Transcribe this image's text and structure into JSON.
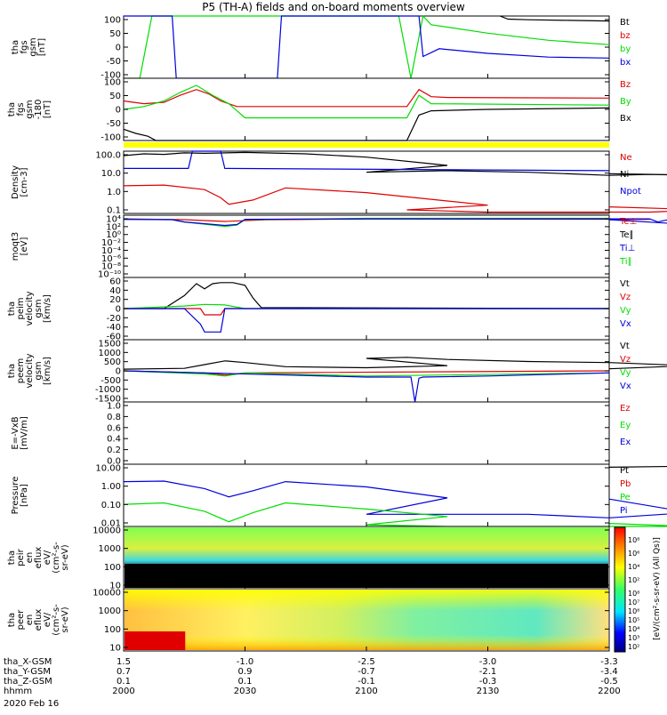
{
  "title": "P5 (TH-A) fields and on-board moments overview",
  "colors": {
    "black": "#000000",
    "red": "#dd0000",
    "green": "#00dd00",
    "blue": "#0000dd",
    "yellow": "#ffff00"
  },
  "chart_data": [
    {
      "type": "line",
      "panel": "fgs",
      "ylabel_lines": [
        "tha",
        "fgs",
        "gsm",
        "[nT]"
      ],
      "yticks": [
        "100",
        "50",
        "0",
        "-50",
        "-100"
      ],
      "ylim": [
        -100,
        100
      ],
      "legend": [
        {
          "label": "Bt",
          "color": "black"
        },
        {
          "label": "bz",
          "color": "red"
        },
        {
          "label": "by",
          "color": "green"
        },
        {
          "label": "bx",
          "color": "blue"
        }
      ],
      "series": [
        {
          "name": "Bt",
          "color": "black",
          "x": [
            2133,
            2135,
            2140,
            2150,
            2200
          ],
          "y": [
            100,
            90,
            88,
            86,
            84
          ]
        },
        {
          "name": "by",
          "color": "green",
          "x": [
            2000,
            2004,
            2007,
            2108,
            2111,
            2114,
            2116,
            2130,
            2145,
            2200
          ],
          "y": [
            -100,
            -100,
            100,
            100,
            -100,
            100,
            72,
            45,
            22,
            8
          ]
        },
        {
          "name": "bx",
          "color": "blue",
          "x": [
            2000,
            2012,
            2013,
            2038,
            2039,
            2113,
            2114,
            2118,
            2130,
            2145,
            2200
          ],
          "y": [
            100,
            100,
            -100,
            -100,
            100,
            100,
            -30,
            -5,
            -20,
            -32,
            -35
          ]
        }
      ]
    },
    {
      "type": "line",
      "panel": "fgs-despun",
      "ylabel_lines": [
        "tha",
        "fgs",
        "gsm",
        "-180",
        "[nT]"
      ],
      "yticks": [
        "100",
        "50",
        "0",
        "-50",
        "-100"
      ],
      "ylim": [
        -120,
        100
      ],
      "legend": [
        {
          "label": "Bz",
          "color": "red"
        },
        {
          "label": "By",
          "color": "green"
        },
        {
          "label": "Bx",
          "color": "black"
        }
      ],
      "series": [
        {
          "name": "Bz",
          "color": "red",
          "x": [
            2000,
            2005,
            2010,
            2014,
            2018,
            2021,
            2024,
            2028,
            2110,
            2113,
            2116,
            2120,
            2200
          ],
          "y": [
            20,
            10,
            15,
            40,
            60,
            45,
            20,
            0,
            0,
            60,
            35,
            32,
            30
          ]
        },
        {
          "name": "By",
          "color": "green",
          "x": [
            2000,
            2005,
            2010,
            2014,
            2018,
            2022,
            2026,
            2030,
            2110,
            2113,
            2116,
            2200
          ],
          "y": [
            -10,
            0,
            20,
            50,
            75,
            40,
            10,
            -40,
            -40,
            40,
            10,
            5
          ]
        },
        {
          "name": "Bx",
          "color": "black",
          "x": [
            2000,
            2003,
            2006,
            2008,
            2110,
            2113,
            2116,
            2130,
            2200
          ],
          "y": [
            -80,
            -95,
            -105,
            -120,
            -120,
            -30,
            -15,
            -10,
            -5
          ]
        }
      ]
    },
    {
      "type": "line",
      "panel": "density",
      "ylabel_lines": [
        "Density",
        "[cm-3]"
      ],
      "yticks": [
        "100.0",
        "10.0",
        "1.0",
        "0.1"
      ],
      "log": true,
      "ylim": [
        0.05,
        200
      ],
      "legend": [
        {
          "label": "Ne",
          "color": "red"
        },
        {
          "label": "Ni",
          "color": "black"
        },
        {
          "label": "Npot",
          "color": "blue"
        }
      ],
      "series": [
        {
          "name": "Ne",
          "color": "red",
          "x": [
            2000,
            2010,
            2020,
            2024,
            2026,
            2032,
            2040,
            2060,
            2090,
            2110,
            2130,
            2150,
            2170,
            2185,
            2200
          ],
          "y": [
            2,
            2.2,
            1.2,
            0.4,
            0.17,
            0.3,
            1.5,
            0.8,
            0.15,
            0.08,
            0.06,
            0.06,
            0.06,
            0.08,
            0.12
          ]
        },
        {
          "name": "Ni",
          "color": "black",
          "x": [
            2000,
            2005,
            2010,
            2015,
            2020,
            2030,
            2045,
            2060,
            2080,
            2100,
            2120,
            2140,
            2160,
            2170,
            2185,
            2200
          ],
          "y": [
            110,
            140,
            130,
            160,
            150,
            170,
            140,
            90,
            30,
            12,
            15,
            12,
            8,
            9,
            8,
            10
          ]
        },
        {
          "name": "Npot",
          "color": "blue",
          "x": [
            2000,
            2016,
            2017,
            2024,
            2025,
            2200
          ],
          "y": [
            20,
            20,
            300,
            300,
            20,
            15
          ]
        }
      ]
    },
    {
      "type": "line",
      "panel": "temperature",
      "ylabel_lines": [
        "moqt3",
        "[eV]"
      ],
      "yticks": [
        "10⁴",
        "10²",
        "10⁰",
        "10⁻²",
        "10⁻⁴",
        "10⁻⁶",
        "10⁻⁸",
        "10⁻¹⁰"
      ],
      "log": true,
      "ylim": [
        1e-10,
        10000
      ],
      "legend": [
        {
          "label": "Te⊥",
          "color": "red"
        },
        {
          "label": "Te∥",
          "color": "black"
        },
        {
          "label": "Ti⊥",
          "color": "blue"
        },
        {
          "label": "Ti∥",
          "color": "green"
        }
      ],
      "series": [
        {
          "name": "Te⊥",
          "color": "red",
          "x": [
            2000,
            2015,
            2025,
            2035,
            2100,
            2170,
            2200
          ],
          "y": [
            1500,
            1000,
            400,
            900,
            1500,
            1200,
            1000
          ]
        },
        {
          "name": "Ti∥",
          "color": "green",
          "x": [
            2000,
            2012,
            2015,
            2025,
            2028,
            2030,
            2100,
            2200
          ],
          "y": [
            1200,
            1000,
            300,
            30,
            60,
            1000,
            2000,
            2000
          ]
        },
        {
          "name": "Ti⊥",
          "color": "blue",
          "x": [
            2000,
            2012,
            2015,
            2025,
            2028,
            2030,
            2100,
            2170,
            2172,
            2175,
            2180,
            2200
          ],
          "y": [
            1200,
            1000,
            300,
            50,
            80,
            1200,
            1500,
            1500,
            300,
            1200,
            80,
            1000
          ]
        }
      ]
    },
    {
      "type": "line",
      "panel": "esa-velocity",
      "ylabel_lines": [
        "tha",
        "peim",
        "velocity",
        "gsm",
        "[km/s]"
      ],
      "yticks": [
        "60",
        "40",
        "20",
        "0",
        "-20",
        "-40",
        "-60"
      ],
      "ylim": [
        -60,
        60
      ],
      "legend": [
        {
          "label": "Vt",
          "color": "black"
        },
        {
          "label": "Vz",
          "color": "red"
        },
        {
          "label": "Vy",
          "color": "green"
        },
        {
          "label": "Vx",
          "color": "blue"
        }
      ],
      "series": [
        {
          "name": "Vt",
          "color": "black",
          "x": [
            2000,
            2010,
            2015,
            2018,
            2020,
            2022,
            2024,
            2027,
            2030,
            2032,
            2034,
            2200
          ],
          "y": [
            0,
            0,
            25,
            48,
            38,
            48,
            50,
            50,
            45,
            20,
            2,
            0
          ]
        },
        {
          "name": "Vz",
          "color": "red",
          "x": [
            2000,
            2019,
            2020,
            2024,
            2025,
            2200
          ],
          "y": [
            0,
            0,
            -12,
            -12,
            0,
            0
          ]
        },
        {
          "name": "Vy",
          "color": "green",
          "x": [
            2000,
            2015,
            2020,
            2025,
            2030,
            2200
          ],
          "y": [
            0,
            5,
            8,
            7,
            0,
            0
          ]
        },
        {
          "name": "Vx",
          "color": "blue",
          "x": [
            2000,
            2015,
            2019,
            2020,
            2024,
            2025,
            2030,
            2200
          ],
          "y": [
            0,
            0,
            -30,
            -45,
            -45,
            0,
            0,
            0
          ]
        }
      ]
    },
    {
      "type": "line",
      "panel": "esa-velocity-2",
      "ylabel_lines": [
        "tha",
        "peem",
        "velocity",
        "gsm",
        "[km/s]"
      ],
      "yticks": [
        "1500",
        "1000",
        "500",
        "0",
        "-500",
        "-1000",
        "-1500"
      ],
      "ylim": [
        -1500,
        1500
      ],
      "legend": [
        {
          "label": "Vt",
          "color": "black"
        },
        {
          "label": "Vz",
          "color": "red"
        },
        {
          "label": "Vy",
          "color": "green"
        },
        {
          "label": "Vx",
          "color": "blue"
        }
      ],
      "series": [
        {
          "name": "Vt",
          "color": "black",
          "x": [
            2000,
            2015,
            2020,
            2025,
            2030,
            2040,
            2060,
            2080,
            2100,
            2110,
            2120,
            2140,
            2160,
            2180,
            2200
          ],
          "y": [
            80,
            120,
            300,
            480,
            400,
            200,
            150,
            250,
            600,
            650,
            550,
            450,
            400,
            250,
            100
          ]
        },
        {
          "name": "Vz",
          "color": "red",
          "x": [
            2000,
            2020,
            2025,
            2030,
            2200
          ],
          "y": [
            0,
            -100,
            -200,
            -100,
            0
          ]
        },
        {
          "name": "Vy",
          "color": "green",
          "x": [
            2000,
            2020,
            2025,
            2030,
            2100,
            2200
          ],
          "y": [
            0,
            -150,
            -250,
            -100,
            -250,
            -100
          ]
        },
        {
          "name": "Vx",
          "color": "blue",
          "x": [
            2000,
            2100,
            2111,
            2112,
            2113,
            2114,
            2130,
            2200
          ],
          "y": [
            0,
            -300,
            -300,
            -1500,
            -350,
            -300,
            -250,
            -100
          ]
        }
      ]
    },
    {
      "type": "line",
      "panel": "efield",
      "ylabel_lines": [
        "E=-VxB",
        "[mV/m]"
      ],
      "yticks": [
        "1.0",
        "0.8",
        "0.6",
        "0.4",
        "0.2",
        "0.0"
      ],
      "ylim": [
        0,
        1
      ],
      "legend": [
        {
          "label": "Ez",
          "color": "red"
        },
        {
          "label": "Ey",
          "color": "green"
        },
        {
          "label": "Ex",
          "color": "blue"
        }
      ],
      "series": []
    },
    {
      "type": "line",
      "panel": "pressure",
      "ylabel_lines": [
        "Pressure",
        "[nPa]"
      ],
      "yticks": [
        "10.00",
        "1.00",
        "0.10",
        "0.01"
      ],
      "log": true,
      "ylim": [
        0.008,
        30
      ],
      "legend": [
        {
          "label": "Pt",
          "color": "black"
        },
        {
          "label": "Pb",
          "color": "red"
        },
        {
          "label": "Pe",
          "color": "green"
        },
        {
          "label": "Pi",
          "color": "blue"
        }
      ],
      "series": [
        {
          "name": "Pi",
          "color": "blue",
          "x": [
            2000,
            2010,
            2020,
            2026,
            2032,
            2040,
            2060,
            2080,
            2100,
            2120,
            2140,
            2160,
            2180,
            2200
          ],
          "y": [
            3,
            3.2,
            1.2,
            0.4,
            0.9,
            3,
            1.5,
            0.35,
            0.04,
            0.04,
            0.04,
            0.025,
            0.05,
            0.3
          ]
        },
        {
          "name": "Pe",
          "color": "green",
          "x": [
            2000,
            2010,
            2020,
            2026,
            2032,
            2040,
            2060,
            2080,
            2100,
            2120,
            2140,
            2160,
            2180,
            2200
          ],
          "y": [
            0.15,
            0.18,
            0.06,
            0.015,
            0.05,
            0.18,
            0.08,
            0.03,
            0.01,
            0.008,
            0.007,
            0.006,
            0.007,
            0.012
          ]
        },
        {
          "name": "Pt",
          "color": "black",
          "x": [
            2190,
            2200
          ],
          "y": [
            25,
            20
          ]
        }
      ]
    },
    {
      "type": "heatmap",
      "panel": "esa-ion-spectrum",
      "ylabel_lines": [
        "tha",
        "peir",
        "en",
        "eflux",
        "eV/",
        "(cm²-s-",
        "sr-eV)"
      ],
      "yticks": [
        "10000",
        "1000",
        "100",
        "10"
      ],
      "log": true
    },
    {
      "type": "heatmap",
      "panel": "esa-electron-spectrum",
      "ylabel_lines": [
        "tha",
        "peer",
        "en",
        "eflux",
        "eV/",
        "(cm²-s-",
        "sr-eV)"
      ],
      "yticks": [
        "10000",
        "1000",
        "100",
        "10"
      ],
      "log": true
    }
  ],
  "colorbar": {
    "ticks_top": [
      "10⁸",
      "10⁶",
      "10⁴",
      "10²"
    ],
    "ticks_bottom": [
      "10⁸",
      "10⁷",
      "10⁶",
      "10⁵",
      "10⁴",
      "10³",
      "10²"
    ],
    "label": "[eV/(cm²-s-sr-eV) (All Qs)]"
  },
  "xaxis": {
    "ticks": [
      "2000",
      "2030",
      "2100",
      "2130",
      "2200"
    ],
    "tick_values": [
      2000,
      2030,
      2100,
      2130,
      2200
    ],
    "xlim": [
      2000,
      2200
    ],
    "ephemeris": [
      {
        "label": "tha_X-GSM",
        "values": [
          "1.5",
          "-1.0",
          "-2.5",
          "-3.0",
          "-3.3"
        ]
      },
      {
        "label": "tha_Y-GSM",
        "values": [
          "0.7",
          "0.9",
          "-0.7",
          "-2.1",
          "-3.4"
        ]
      },
      {
        "label": "tha_Z-GSM",
        "values": [
          "0.1",
          "0.1",
          "-0.1",
          "-0.3",
          "-0.5"
        ]
      },
      {
        "label": "hhmm",
        "values": [
          "2000",
          "2030",
          "2100",
          "2130",
          "2200"
        ]
      }
    ],
    "date": "2020 Feb 16"
  }
}
